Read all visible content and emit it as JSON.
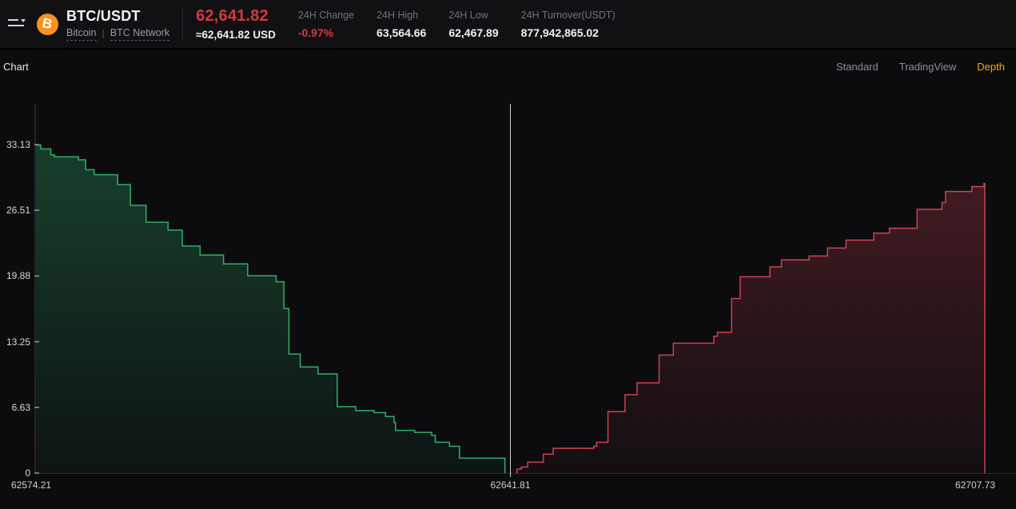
{
  "header": {
    "pair": "BTC/USDT",
    "base_name": "Bitcoin",
    "separator": "|",
    "network": "BTC Network",
    "last_price": "62,641.82",
    "usd_value": "≈62,641.82 USD",
    "stats": [
      {
        "label": "24H Change",
        "value": "-0.97%"
      },
      {
        "label": "24H High",
        "value": "63,564.66"
      },
      {
        "label": "24H Low",
        "value": "62,467.89"
      },
      {
        "label": "24H Turnover(USDT)",
        "value": "877,942,865.02"
      }
    ]
  },
  "toolbar": {
    "title": "Chart",
    "modes": [
      {
        "label": "Standard",
        "active": false
      },
      {
        "label": "TradingView",
        "active": false
      },
      {
        "label": "Depth",
        "active": true
      }
    ]
  },
  "colors": {
    "accent_orange": "#f7a600",
    "price_red": "#d8383f",
    "bid_line": "#2fae67",
    "ask_line": "#cd4350",
    "bid_fill_top": "rgba(46,160,95,0.35)",
    "bid_fill_bottom": "rgba(46,160,95,0.05)",
    "ask_fill_top": "rgba(205,70,80,0.30)",
    "ask_fill_bottom": "rgba(205,70,80,0.04)",
    "mid_line": "#c9d1d1",
    "axis_line": "#3a3a3d",
    "baseline": "#2c2c30",
    "tick_text": "#d8d8da"
  },
  "chart_data": {
    "type": "area",
    "subtype": "order-book-depth-step",
    "x_range": [
      62574.21,
      62707.73
    ],
    "y_max": 33.13,
    "mid_price": 62641.81,
    "x_labels": [
      "62574.21",
      "62641.81",
      "62707.73"
    ],
    "y_ticks": [
      {
        "v": 0,
        "label": "0"
      },
      {
        "v": 6.63,
        "label": "6.63"
      },
      {
        "v": 13.25,
        "label": "13.25"
      },
      {
        "v": 19.88,
        "label": "19.88"
      },
      {
        "v": 26.51,
        "label": "26.51"
      },
      {
        "v": 33.13,
        "label": "33.13"
      }
    ],
    "series": [
      {
        "name": "bids",
        "points": [
          [
            62574.21,
            33.1
          ],
          [
            62574.9,
            32.7
          ],
          [
            62576.3,
            32.1
          ],
          [
            62576.8,
            31.9
          ],
          [
            62580.2,
            31.6
          ],
          [
            62581.2,
            30.6
          ],
          [
            62582.4,
            30.1
          ],
          [
            62585.7,
            29.1
          ],
          [
            62587.5,
            27.0
          ],
          [
            62589.7,
            25.3
          ],
          [
            62592.8,
            24.5
          ],
          [
            62594.8,
            22.9
          ],
          [
            62597.3,
            22.0
          ],
          [
            62600.6,
            21.1
          ],
          [
            62604.0,
            19.9
          ],
          [
            62608.0,
            19.3
          ],
          [
            62609.1,
            16.6
          ],
          [
            62609.8,
            12.0
          ],
          [
            62611.4,
            10.7
          ],
          [
            62613.9,
            10.0
          ],
          [
            62616.6,
            6.7
          ],
          [
            62619.2,
            6.3
          ],
          [
            62621.8,
            6.1
          ],
          [
            62623.4,
            5.7
          ],
          [
            62624.6,
            5.1
          ],
          [
            62624.8,
            4.3
          ],
          [
            62627.5,
            4.1
          ],
          [
            62629.9,
            3.8
          ],
          [
            62630.4,
            3.1
          ],
          [
            62632.4,
            2.7
          ],
          [
            62633.8,
            1.5
          ],
          [
            62640.2,
            0.0
          ]
        ]
      },
      {
        "name": "asks",
        "points": [
          [
            62641.7,
            0.0
          ],
          [
            62641.9,
            0.4
          ],
          [
            62642.5,
            0.6
          ],
          [
            62643.4,
            1.1
          ],
          [
            62645.6,
            1.9
          ],
          [
            62647.0,
            2.5
          ],
          [
            62652.7,
            2.7
          ],
          [
            62653.1,
            3.1
          ],
          [
            62654.7,
            6.2
          ],
          [
            62657.1,
            7.9
          ],
          [
            62658.8,
            9.1
          ],
          [
            62661.9,
            11.9
          ],
          [
            62663.9,
            13.1
          ],
          [
            62669.6,
            13.8
          ],
          [
            62670.1,
            14.2
          ],
          [
            62672.1,
            17.6
          ],
          [
            62673.3,
            19.8
          ],
          [
            62677.5,
            20.8
          ],
          [
            62679.1,
            21.5
          ],
          [
            62683.0,
            21.9
          ],
          [
            62685.6,
            22.7
          ],
          [
            62688.2,
            23.5
          ],
          [
            62692.1,
            24.2
          ],
          [
            62694.3,
            24.7
          ],
          [
            62698.2,
            26.6
          ],
          [
            62701.7,
            27.3
          ],
          [
            62702.2,
            28.4
          ],
          [
            62705.9,
            28.9
          ],
          [
            62707.6,
            29.2
          ],
          [
            62707.73,
            0.0
          ]
        ]
      }
    ]
  }
}
